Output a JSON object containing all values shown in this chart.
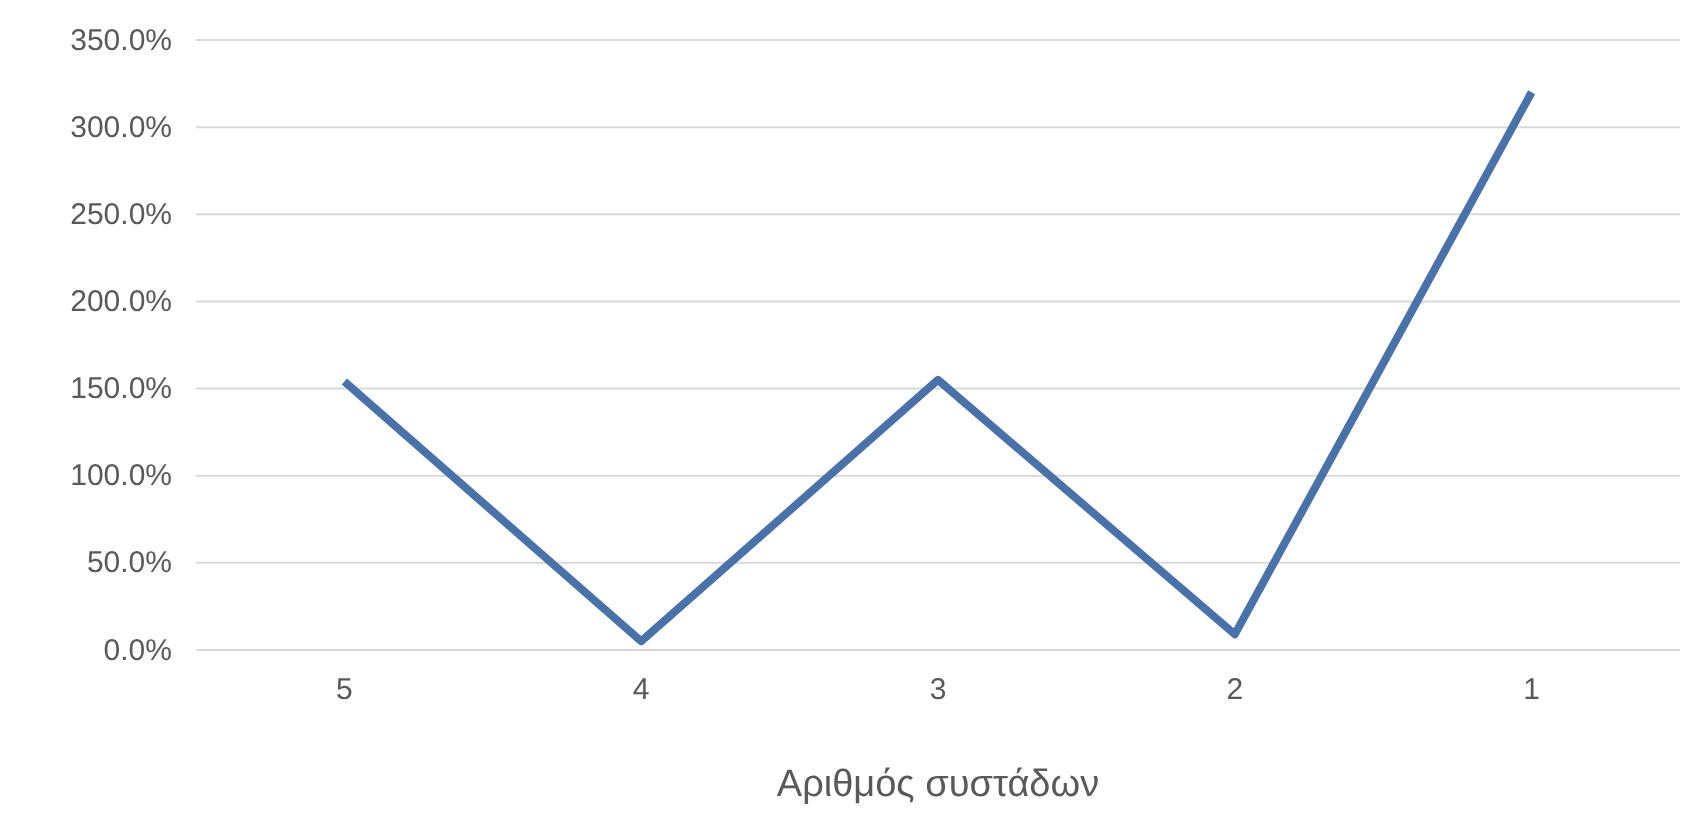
{
  "chart_data": {
    "type": "line",
    "xlabel": "Αριθμός συστάδων",
    "categories": [
      "5",
      "4",
      "3",
      "2",
      "1"
    ],
    "series": [
      {
        "color": "#4a72a8",
        "values": [
          154,
          5,
          155,
          9,
          320
        ]
      }
    ],
    "ylim": [
      0,
      350
    ],
    "yticks": [
      {
        "value": 0,
        "label": "0.0%"
      },
      {
        "value": 50,
        "label": "50.0%"
      },
      {
        "value": 100,
        "label": "100.0%"
      },
      {
        "value": 150,
        "label": "150.0%"
      },
      {
        "value": 200,
        "label": "200.0%"
      },
      {
        "value": 250,
        "label": "250.0%"
      },
      {
        "value": 300,
        "label": "300.0%"
      },
      {
        "value": 350,
        "label": "350.0%"
      }
    ],
    "grid": "y",
    "marker": "none",
    "line_style": "solid"
  }
}
